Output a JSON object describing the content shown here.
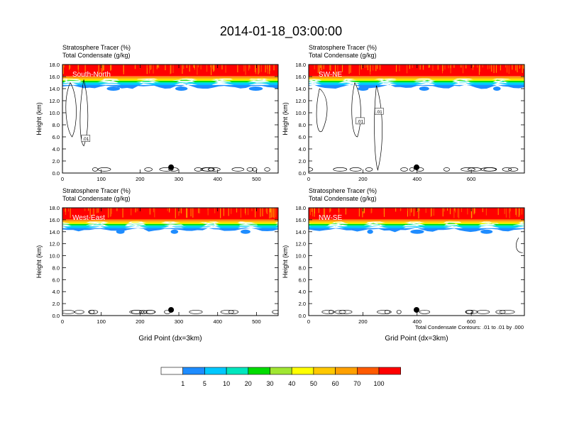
{
  "title": "2014-01-18_03:00:00",
  "chart_data": [
    {
      "type": "contour",
      "panel_label": "South-North",
      "left_title_line1": "Stratosphere Tracer   (%)",
      "left_title_line2": "Total Condensate   (g/kg)",
      "ylabel": "Height (km)",
      "xlabel": "",
      "xlim": [
        0,
        556
      ],
      "ylim": [
        0,
        18
      ],
      "x_ticks": [
        0,
        100,
        200,
        300,
        400,
        500
      ],
      "y_ticks": [
        "0.0",
        "2.0",
        "4.0",
        "6.0",
        "8.0",
        "10.0",
        "12.0",
        "14.0",
        "16.0",
        "18.0"
      ],
      "marker_x": 280,
      "contour_labels": [
        ".01"
      ]
    },
    {
      "type": "contour",
      "panel_label": "SW-NE",
      "left_title_line1": "Stratosphere Tracer   (%)",
      "left_title_line2": "Total Condensate   (g/kg)",
      "ylabel": "Height (km)",
      "xlabel": "",
      "xlim": [
        0,
        796
      ],
      "ylim": [
        0,
        18
      ],
      "x_ticks": [
        0,
        200,
        400,
        600
      ],
      "y_ticks": [
        "0.0",
        "2.0",
        "4.0",
        "6.0",
        "8.0",
        "10.0",
        "12.0",
        "14.0",
        "16.0",
        "18.0"
      ],
      "marker_x": 398,
      "contour_labels": [
        ".01",
        ".01"
      ]
    },
    {
      "type": "contour",
      "panel_label": "West-East",
      "left_title_line1": "Stratosphere Tracer   (%)",
      "left_title_line2": "Total Condensate   (g/kg)",
      "ylabel": "Height (km)",
      "xlabel": "Grid Point (dx=3km)",
      "xlim": [
        0,
        556
      ],
      "ylim": [
        0,
        18
      ],
      "x_ticks": [
        0,
        100,
        200,
        300,
        400,
        500
      ],
      "y_ticks": [
        "0.0",
        "2.0",
        "4.0",
        "6.0",
        "8.0",
        "10.0",
        "12.0",
        "14.0",
        "16.0",
        "18.0"
      ],
      "marker_x": 280,
      "contour_labels": []
    },
    {
      "type": "contour",
      "panel_label": "NW-SE",
      "left_title_line1": "Stratosphere Tracer   (%)",
      "left_title_line2": "Total Condensate   (g/kg)",
      "ylabel": "Height (km)",
      "xlabel": "Grid Point (dx=3km)",
      "xlim": [
        0,
        796
      ],
      "ylim": [
        0,
        18
      ],
      "x_ticks": [
        0,
        200,
        400,
        600
      ],
      "y_ticks": [
        "0.0",
        "2.0",
        "4.0",
        "6.0",
        "8.0",
        "10.0",
        "12.0",
        "14.0",
        "16.0",
        "18.0"
      ],
      "marker_x": 398,
      "contour_labels": [],
      "contour_note": "Total Condensate Contours: .01 to .01 by .000"
    }
  ],
  "colorbar": {
    "labels": [
      "1",
      "5",
      "10",
      "20",
      "30",
      "40",
      "50",
      "60",
      "70",
      "100"
    ],
    "colors": [
      "#ffffff",
      "#1e8cff",
      "#00c8ff",
      "#00e6be",
      "#00dc00",
      "#a0e632",
      "#ffff00",
      "#ffc800",
      "#ffa000",
      "#ff5a00",
      "#ff0000"
    ]
  }
}
